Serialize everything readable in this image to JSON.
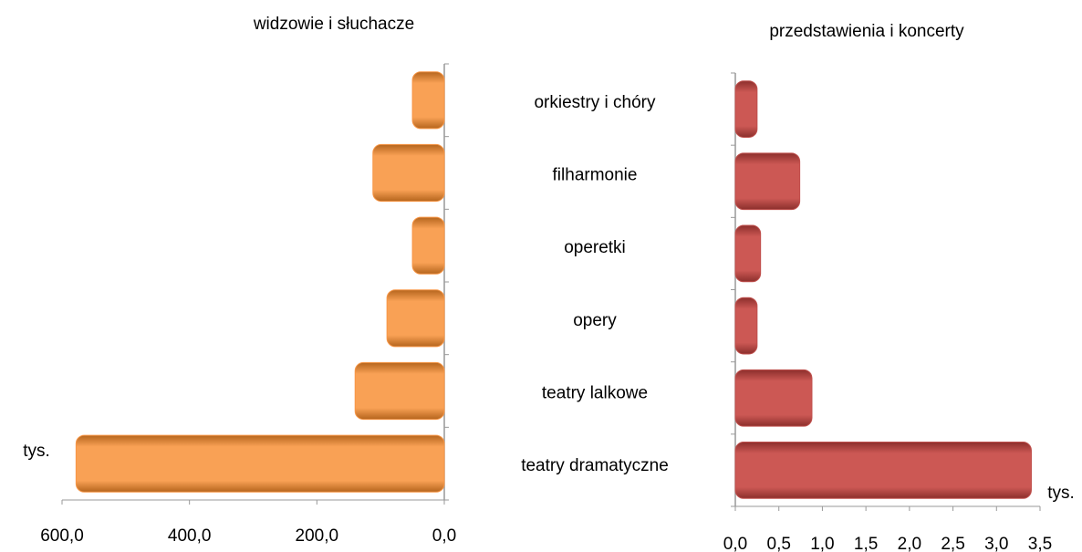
{
  "chart_data": [
    {
      "type": "bar",
      "orientation": "horizontal",
      "title": "widzowie i słuchacze",
      "unit_label": "tys.",
      "categories": [
        "orkiestry i chóry",
        "filharmonie",
        "operetki",
        "opery",
        "teatry lalkowe",
        "teatry dramatyczne"
      ],
      "values": [
        50,
        112,
        50,
        90,
        140,
        578
      ],
      "color": "#f79646",
      "x_inverted": true,
      "xlim": [
        0,
        600
      ],
      "xticks": [
        {
          "value": 0,
          "label": "0,0"
        },
        {
          "value": 200,
          "label": "200,0"
        },
        {
          "value": 400,
          "label": "400,0"
        },
        {
          "value": 600,
          "label": "600,0"
        }
      ]
    },
    {
      "type": "bar",
      "orientation": "horizontal",
      "title": "przedstawienia i koncerty",
      "unit_label": "tys.",
      "values": [
        0.25,
        0.74,
        0.29,
        0.25,
        0.88,
        3.4
      ],
      "color": "#c0504d",
      "x_inverted": false,
      "xlim": [
        0,
        3.5
      ],
      "xticks": [
        {
          "value": 0,
          "label": "0,0"
        },
        {
          "value": 0.5,
          "label": "0,5"
        },
        {
          "value": 1,
          "label": "1,0"
        },
        {
          "value": 1.5,
          "label": "1,5"
        },
        {
          "value": 2,
          "label": "2,0"
        },
        {
          "value": 2.5,
          "label": "2,5"
        },
        {
          "value": 3,
          "label": "3,0"
        },
        {
          "value": 3.5,
          "label": "3,5"
        }
      ]
    }
  ]
}
